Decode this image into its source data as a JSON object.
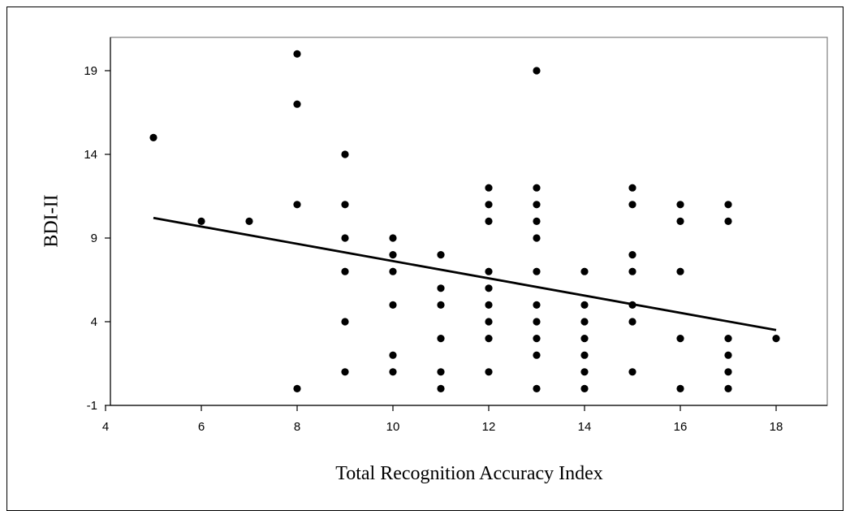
{
  "chart_data": {
    "type": "scatter",
    "xlabel": "Total Recognition Accuracy Index",
    "ylabel": "BDI-II",
    "xlim": [
      4,
      19
    ],
    "ylim": [
      -1,
      21
    ],
    "xticks": [
      4,
      6,
      8,
      10,
      12,
      14,
      16,
      18
    ],
    "yticks": [
      -1,
      4,
      9,
      14,
      19
    ],
    "grid": false,
    "legend": "none",
    "series": [
      {
        "points": [
          [
            5,
            15
          ],
          [
            6,
            10
          ],
          [
            7,
            10
          ],
          [
            8,
            20
          ],
          [
            8,
            17
          ],
          [
            8,
            11
          ],
          [
            8,
            0
          ],
          [
            9,
            14
          ],
          [
            9,
            11
          ],
          [
            9,
            9
          ],
          [
            9,
            7
          ],
          [
            9,
            4
          ],
          [
            9,
            1
          ],
          [
            10,
            9
          ],
          [
            10,
            8
          ],
          [
            10,
            7
          ],
          [
            10,
            5
          ],
          [
            10,
            2
          ],
          [
            10,
            1
          ],
          [
            11,
            8
          ],
          [
            11,
            6
          ],
          [
            11,
            5
          ],
          [
            11,
            3
          ],
          [
            11,
            1
          ],
          [
            11,
            0
          ],
          [
            12,
            12
          ],
          [
            12,
            11
          ],
          [
            12,
            10
          ],
          [
            12,
            7
          ],
          [
            12,
            6
          ],
          [
            12,
            5
          ],
          [
            12,
            4
          ],
          [
            12,
            3
          ],
          [
            12,
            1
          ],
          [
            13,
            19
          ],
          [
            13,
            12
          ],
          [
            13,
            11
          ],
          [
            13,
            10
          ],
          [
            13,
            9
          ],
          [
            13,
            7
          ],
          [
            13,
            5
          ],
          [
            13,
            4
          ],
          [
            13,
            3
          ],
          [
            13,
            2
          ],
          [
            13,
            0
          ],
          [
            14,
            7
          ],
          [
            14,
            5
          ],
          [
            14,
            4
          ],
          [
            14,
            3
          ],
          [
            14,
            2
          ],
          [
            14,
            1
          ],
          [
            14,
            0
          ],
          [
            15,
            12
          ],
          [
            15,
            11
          ],
          [
            15,
            8
          ],
          [
            15,
            7
          ],
          [
            15,
            5
          ],
          [
            15,
            4
          ],
          [
            15,
            1
          ],
          [
            16,
            11
          ],
          [
            16,
            10
          ],
          [
            16,
            7
          ],
          [
            16,
            3
          ],
          [
            16,
            0
          ],
          [
            17,
            11
          ],
          [
            17,
            10
          ],
          [
            17,
            3
          ],
          [
            17,
            2
          ],
          [
            17,
            1
          ],
          [
            17,
            0
          ],
          [
            18,
            3
          ]
        ]
      }
    ],
    "trendline": {
      "x": [
        5,
        18
      ],
      "y": [
        10.2,
        3.5
      ]
    }
  }
}
